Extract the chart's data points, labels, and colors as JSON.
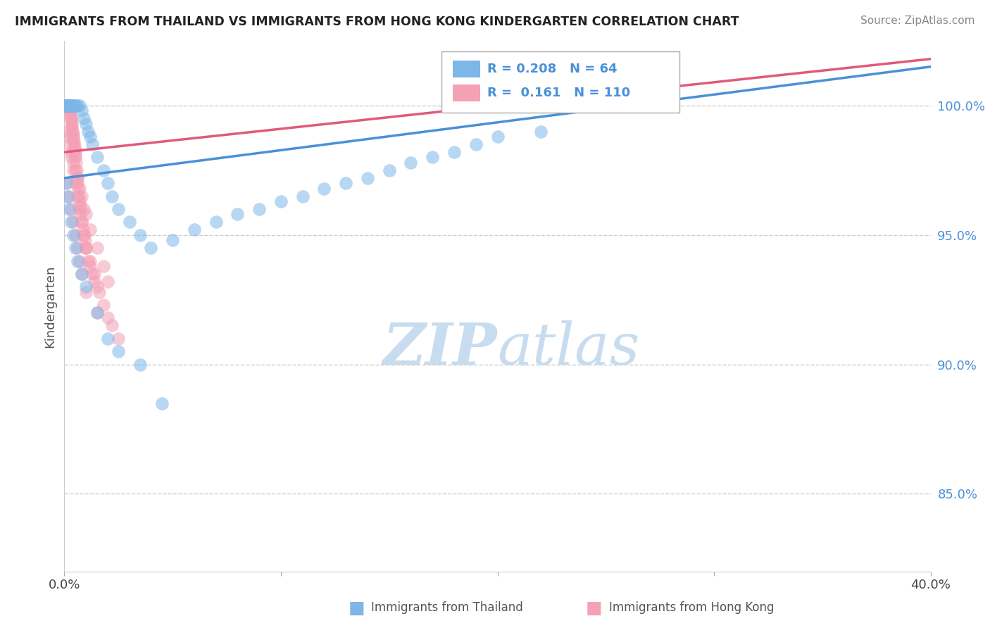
{
  "title": "IMMIGRANTS FROM THAILAND VS IMMIGRANTS FROM HONG KONG KINDERGARTEN CORRELATION CHART",
  "source": "Source: ZipAtlas.com",
  "ylabel": "Kindergarten",
  "legend_label_blue": "Immigrants from Thailand",
  "legend_label_pink": "Immigrants from Hong Kong",
  "R_blue": 0.208,
  "N_blue": 64,
  "R_pink": 0.161,
  "N_pink": 110,
  "color_blue": "#7EB6E8",
  "color_pink": "#F4A0B5",
  "trendline_blue": "#4A90D9",
  "trendline_pink": "#E05A7A",
  "watermark_color": "#C8DCF0",
  "xlim": [
    0.0,
    40.0
  ],
  "ylim": [
    82.0,
    102.5
  ],
  "yticks": [
    85.0,
    90.0,
    95.0,
    100.0
  ],
  "ytick_labels": [
    "85.0%",
    "90.0%",
    "95.0%",
    "100.0%"
  ],
  "thailand_x": [
    0.05,
    0.05,
    0.05,
    0.1,
    0.1,
    0.15,
    0.15,
    0.2,
    0.2,
    0.25,
    0.3,
    0.3,
    0.35,
    0.4,
    0.4,
    0.5,
    0.5,
    0.6,
    0.7,
    0.8,
    0.9,
    1.0,
    1.1,
    1.2,
    1.3,
    1.5,
    1.8,
    2.0,
    2.2,
    2.5,
    3.0,
    3.5,
    4.0,
    5.0,
    6.0,
    7.0,
    8.0,
    9.0,
    10.0,
    11.0,
    12.0,
    13.0,
    14.0,
    15.0,
    16.0,
    17.0,
    18.0,
    19.0,
    20.0,
    22.0,
    0.1,
    0.15,
    0.2,
    0.3,
    0.4,
    0.5,
    0.6,
    0.8,
    1.0,
    1.5,
    2.0,
    2.5,
    3.5,
    4.5
  ],
  "thailand_y": [
    100.0,
    100.0,
    100.0,
    100.0,
    100.0,
    100.0,
    100.0,
    100.0,
    100.0,
    100.0,
    100.0,
    100.0,
    100.0,
    100.0,
    100.0,
    100.0,
    100.0,
    100.0,
    100.0,
    99.8,
    99.5,
    99.3,
    99.0,
    98.8,
    98.5,
    98.0,
    97.5,
    97.0,
    96.5,
    96.0,
    95.5,
    95.0,
    94.5,
    94.8,
    95.2,
    95.5,
    95.8,
    96.0,
    96.3,
    96.5,
    96.8,
    97.0,
    97.2,
    97.5,
    97.8,
    98.0,
    98.2,
    98.5,
    98.8,
    99.0,
    97.0,
    96.5,
    96.0,
    95.5,
    95.0,
    94.5,
    94.0,
    93.5,
    93.0,
    92.0,
    91.0,
    90.5,
    90.0,
    88.5
  ],
  "hongkong_x": [
    0.02,
    0.02,
    0.03,
    0.03,
    0.04,
    0.05,
    0.05,
    0.06,
    0.07,
    0.08,
    0.08,
    0.09,
    0.1,
    0.1,
    0.1,
    0.12,
    0.12,
    0.13,
    0.14,
    0.15,
    0.15,
    0.16,
    0.17,
    0.18,
    0.19,
    0.2,
    0.2,
    0.22,
    0.23,
    0.25,
    0.25,
    0.27,
    0.28,
    0.3,
    0.3,
    0.32,
    0.33,
    0.35,
    0.36,
    0.38,
    0.4,
    0.4,
    0.42,
    0.44,
    0.45,
    0.47,
    0.48,
    0.5,
    0.5,
    0.52,
    0.55,
    0.58,
    0.6,
    0.62,
    0.65,
    0.68,
    0.7,
    0.72,
    0.75,
    0.8,
    0.85,
    0.9,
    0.95,
    1.0,
    1.0,
    1.1,
    1.2,
    1.3,
    1.4,
    1.5,
    1.6,
    1.8,
    2.0,
    2.2,
    2.5,
    0.15,
    0.2,
    0.25,
    0.3,
    0.4,
    0.5,
    0.6,
    0.7,
    0.8,
    0.9,
    1.0,
    1.2,
    1.5,
    1.8,
    2.0,
    0.1,
    0.2,
    0.3,
    0.4,
    0.5,
    0.6,
    0.7,
    0.8,
    1.0,
    1.5,
    0.3,
    0.4,
    0.5,
    0.6,
    0.7,
    0.8,
    0.9,
    1.0,
    1.2,
    1.4
  ],
  "hongkong_y": [
    100.0,
    100.0,
    100.0,
    100.0,
    100.0,
    100.0,
    100.0,
    100.0,
    100.0,
    100.0,
    100.0,
    100.0,
    100.0,
    100.0,
    100.0,
    100.0,
    100.0,
    100.0,
    100.0,
    100.0,
    100.0,
    100.0,
    100.0,
    100.0,
    100.0,
    100.0,
    100.0,
    100.0,
    100.0,
    99.9,
    99.8,
    99.7,
    99.6,
    99.5,
    99.5,
    99.4,
    99.3,
    99.2,
    99.1,
    99.0,
    98.9,
    98.8,
    98.7,
    98.6,
    98.5,
    98.4,
    98.3,
    98.2,
    98.1,
    98.0,
    97.8,
    97.5,
    97.2,
    97.0,
    96.8,
    96.5,
    96.3,
    96.1,
    95.8,
    95.5,
    95.2,
    95.0,
    94.8,
    94.5,
    94.5,
    94.0,
    93.8,
    93.5,
    93.2,
    93.0,
    92.8,
    92.3,
    91.8,
    91.5,
    91.0,
    99.0,
    98.8,
    98.5,
    98.2,
    97.8,
    97.5,
    97.2,
    96.8,
    96.5,
    96.0,
    95.8,
    95.2,
    94.5,
    93.8,
    93.2,
    97.0,
    96.5,
    96.0,
    95.5,
    95.0,
    94.5,
    94.0,
    93.5,
    92.8,
    92.0,
    98.0,
    97.5,
    97.0,
    96.5,
    96.0,
    95.5,
    95.0,
    94.5,
    94.0,
    93.5
  ]
}
